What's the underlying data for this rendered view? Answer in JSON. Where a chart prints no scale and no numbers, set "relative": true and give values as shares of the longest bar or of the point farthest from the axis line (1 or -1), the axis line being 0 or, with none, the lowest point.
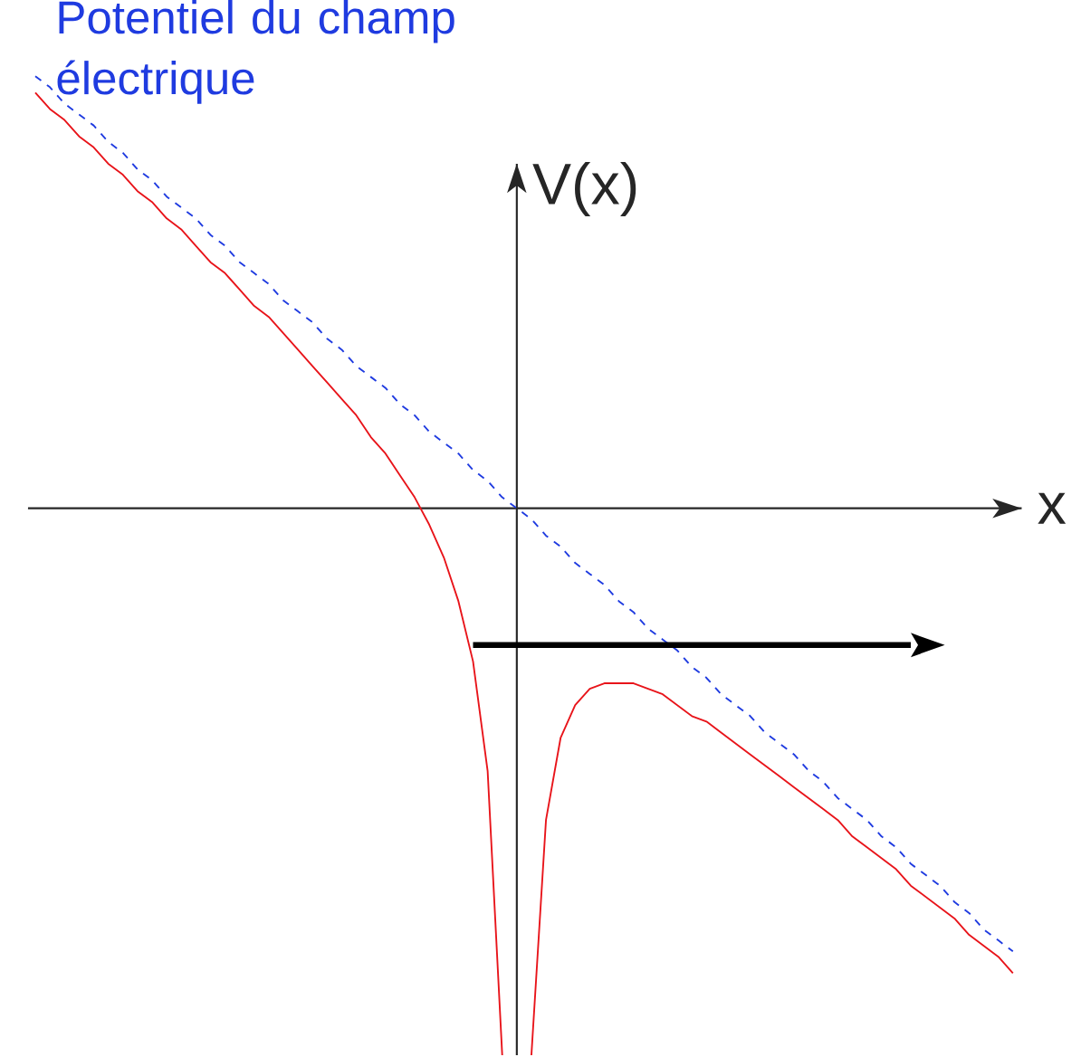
{
  "chart_data": {
    "type": "line",
    "relative": true,
    "xlabel": "x",
    "ylabel": "V(x)",
    "marker": "none",
    "categories": [
      null,
      null,
      null,
      null,
      null,
      null,
      null,
      null,
      null,
      null,
      null,
      null,
      null,
      null,
      null,
      null,
      null,
      null,
      null,
      null,
      null,
      null,
      null,
      null,
      null,
      null,
      null,
      null,
      null,
      null,
      null,
      null,
      null,
      null,
      null,
      null,
      null,
      null,
      null,
      null,
      null,
      null,
      null,
      null,
      null,
      null,
      null,
      null,
      null,
      null,
      null,
      null,
      null,
      null,
      null,
      null,
      null,
      null,
      null,
      null,
      null,
      null,
      null,
      null,
      null,
      null,
      null,
      null
    ],
    "series": [
      {
        "color": "#e8141a",
        "line_style": "solid",
        "values": [
          0.76,
          0.73,
          0.71,
          0.68,
          0.66,
          0.63,
          0.61,
          0.58,
          0.56,
          0.53,
          0.51,
          0.48,
          0.45,
          0.43,
          0.4,
          0.37,
          0.35,
          0.32,
          0.29,
          0.26,
          0.23,
          0.2,
          0.17,
          0.13,
          0.1,
          0.06,
          0.02,
          -0.03,
          -0.09,
          -0.17,
          -0.28,
          -0.48,
          -1,
          null,
          -1,
          -0.57,
          -0.42,
          -0.36,
          -0.33,
          -0.32,
          -0.32,
          -0.32,
          -0.33,
          -0.34,
          -0.36,
          -0.38,
          -0.39,
          -0.41,
          -0.43,
          -0.45,
          -0.47,
          -0.49,
          -0.51,
          -0.53,
          -0.55,
          -0.57,
          -0.6,
          -0.62,
          -0.64,
          -0.66,
          -0.69,
          -0.71,
          -0.73,
          -0.75,
          -0.78,
          -0.8,
          -0.82,
          -0.85
        ]
      },
      {
        "name": "Potentiel du champ électrique",
        "color": "#1f3be0",
        "line_style": "dashed",
        "values": [
          0.79,
          0.77,
          0.74,
          0.72,
          0.7,
          0.67,
          0.65,
          0.62,
          0.6,
          0.57,
          0.55,
          0.53,
          0.5,
          0.48,
          0.45,
          0.43,
          0.41,
          0.38,
          0.36,
          0.34,
          0.31,
          0.29,
          0.26,
          0.24,
          0.22,
          0.19,
          0.17,
          0.14,
          0.12,
          0.1,
          0.07,
          0.05,
          0.02,
          0,
          -0.02,
          -0.05,
          -0.07,
          -0.1,
          -0.12,
          -0.14,
          -0.17,
          -0.19,
          -0.22,
          -0.24,
          -0.26,
          -0.29,
          -0.31,
          -0.34,
          -0.36,
          -0.38,
          -0.41,
          -0.43,
          -0.45,
          -0.48,
          -0.5,
          -0.53,
          -0.55,
          -0.57,
          -0.6,
          -0.62,
          -0.65,
          -0.67,
          -0.69,
          -0.72,
          -0.74,
          -0.77,
          -0.79,
          -0.81
        ]
      },
      {
        "color": "#000000",
        "line_style": "solid",
        "values": [
          null,
          null,
          null,
          null,
          null,
          null,
          null,
          null,
          null,
          null,
          null,
          null,
          null,
          null,
          null,
          null,
          null,
          null,
          null,
          null,
          null,
          null,
          null,
          null,
          null,
          null,
          null,
          null,
          null,
          null,
          -0.25,
          -0.25,
          -0.25,
          -0.25,
          -0.25,
          -0.25,
          -0.25,
          -0.25,
          -0.25,
          -0.25,
          -0.25,
          -0.25,
          -0.25,
          -0.25,
          -0.25,
          -0.25,
          -0.25,
          -0.25,
          -0.25,
          -0.25,
          -0.25,
          -0.25,
          -0.25,
          -0.25,
          -0.25,
          -0.25,
          -0.25,
          -0.25,
          -0.25,
          -0.25,
          -0.25,
          null,
          null,
          null,
          null,
          null,
          null,
          null
        ]
      }
    ]
  }
}
